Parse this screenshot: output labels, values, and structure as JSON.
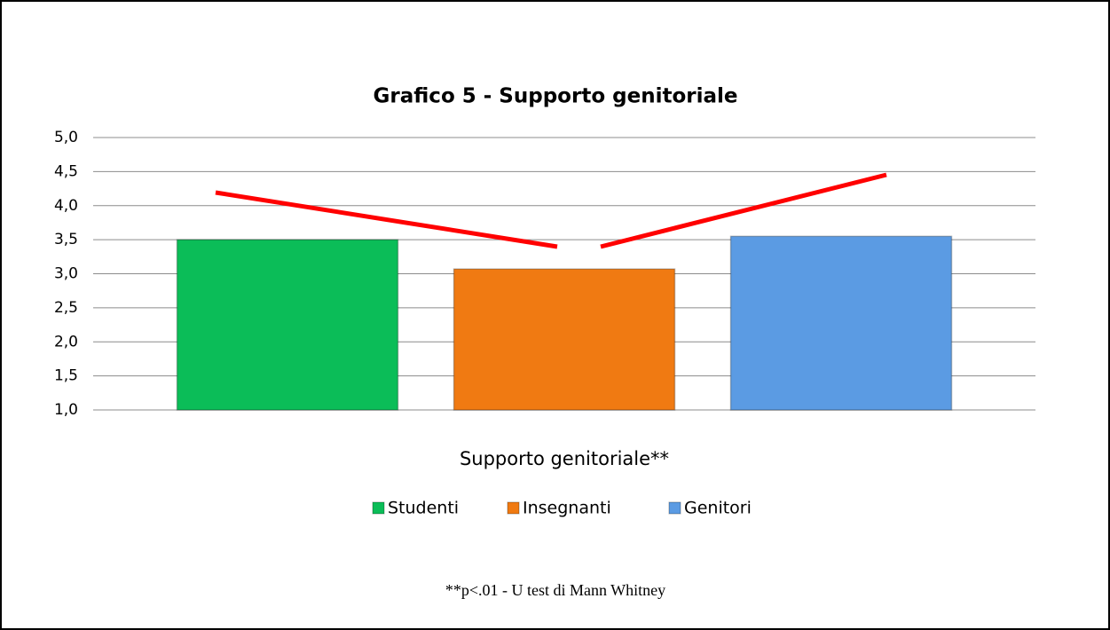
{
  "chart_data": {
    "type": "bar",
    "title": "Grafico 5 - Supporto genitoriale",
    "categories": [
      "Supporto genitoriale**"
    ],
    "series": [
      {
        "name": "Studenti",
        "color": "#0bbd58",
        "values": [
          3.5
        ]
      },
      {
        "name": "Insegnanti",
        "color": "#f07a12",
        "values": [
          3.07
        ]
      },
      {
        "name": "Genitori",
        "color": "#5b9be3",
        "values": [
          3.55
        ]
      }
    ],
    "ylim": [
      1,
      5
    ],
    "yticks": [
      {
        "value": 1,
        "label": "1,0"
      },
      {
        "value": 1.5,
        "label": "1,5"
      },
      {
        "value": 2,
        "label": "2,0"
      },
      {
        "value": 2.5,
        "label": "2,5"
      },
      {
        "value": 3,
        "label": "3,0"
      },
      {
        "value": 3.5,
        "label": "3,5"
      },
      {
        "value": 4,
        "label": "4,0"
      },
      {
        "value": 4.5,
        "label": "4,5"
      },
      {
        "value": 5,
        "label": "5,0"
      }
    ],
    "grid": true,
    "legend": "bottom",
    "note": "**p<.01 - U test di Mann Whitney"
  }
}
